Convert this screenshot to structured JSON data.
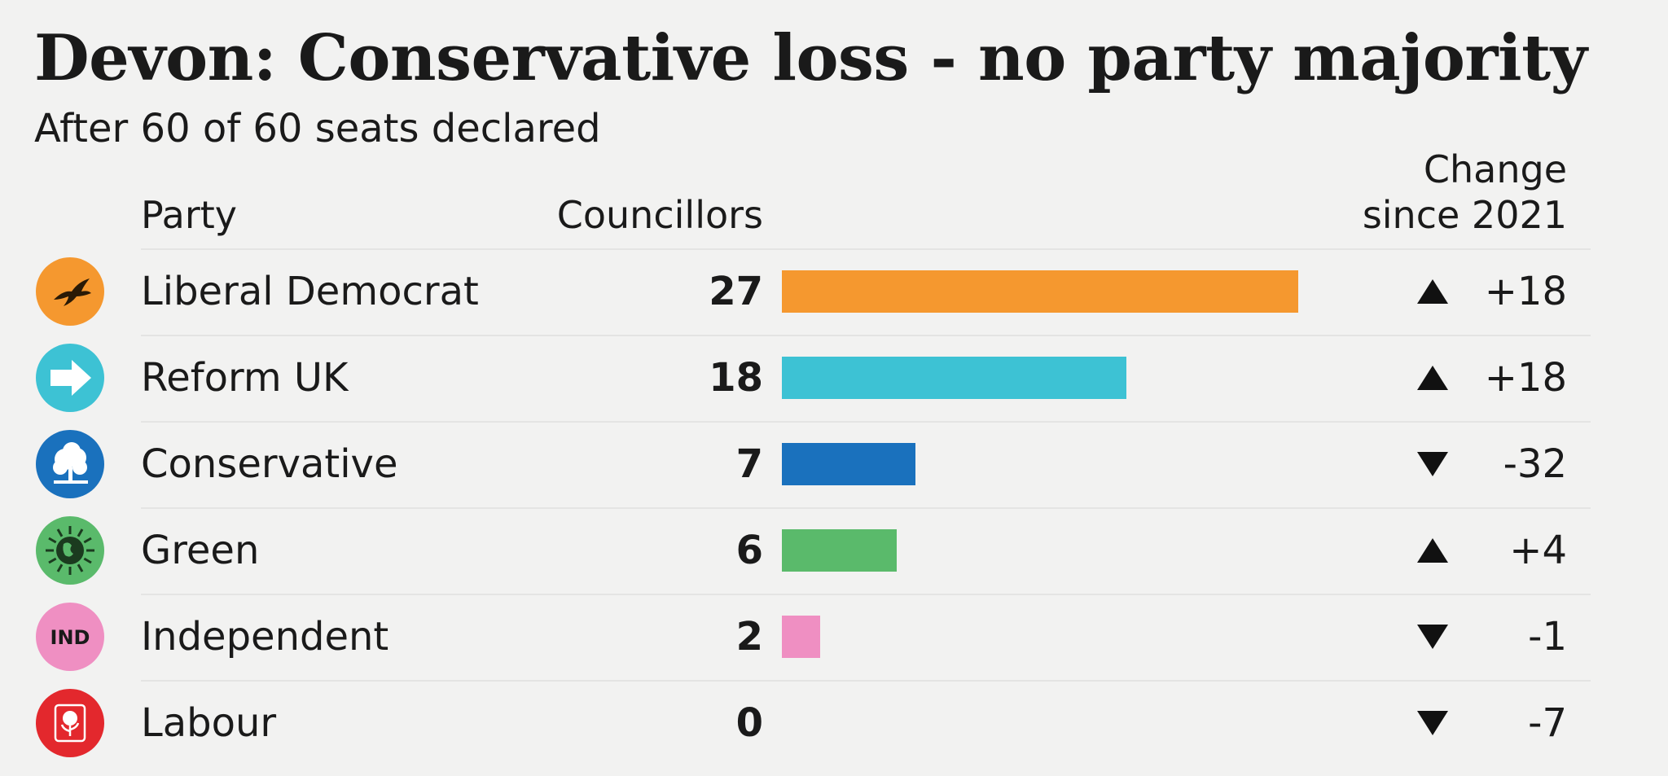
{
  "chart_data": {
    "type": "bar",
    "orientation": "horizontal",
    "title": "Devon: Conservative loss - no party majority",
    "subtitle": "After 60 of 60 seats declared",
    "column_headers": {
      "party": "Party",
      "councillors": "Councillors",
      "change_line1": "Change",
      "change_line2": "since 2021"
    },
    "xlim": [
      0,
      27
    ],
    "rows": [
      {
        "party": "Liberal Democrat",
        "councillors": 27,
        "change": "+18",
        "direction": "up",
        "color": "#f5982f",
        "logo": "liberal-democrat-bird-logo"
      },
      {
        "party": "Reform UK",
        "councillors": 18,
        "change": "+18",
        "direction": "up",
        "color": "#3dc2d4",
        "logo": "reform-uk-arrow-logo"
      },
      {
        "party": "Conservative",
        "councillors": 7,
        "change": "-32",
        "direction": "down",
        "color": "#1a71bd",
        "logo": "conservative-tree-logo"
      },
      {
        "party": "Green",
        "councillors": 6,
        "change": "+4",
        "direction": "up",
        "color": "#5aba6b",
        "logo": "green-globe-logo"
      },
      {
        "party": "Independent",
        "councillors": 2,
        "change": "-1",
        "direction": "down",
        "color": "#ef8fc2",
        "logo": "independent-logo",
        "logo_text": "IND"
      },
      {
        "party": "Labour",
        "councillors": 0,
        "change": "-7",
        "direction": "down",
        "color": "#e3282d",
        "logo": "labour-rose-logo"
      }
    ]
  }
}
